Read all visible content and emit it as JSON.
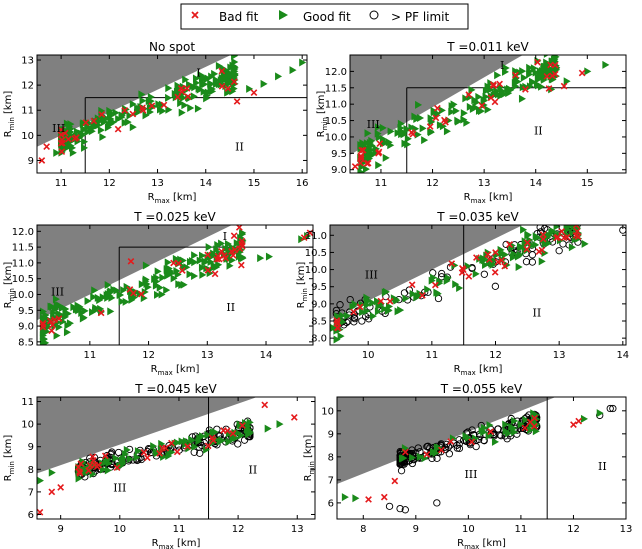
{
  "legend": {
    "entries": [
      {
        "label": "Bad fit",
        "marker": "x",
        "color": "#e41a1c"
      },
      {
        "label": "Good fit",
        "marker": "triangle-right",
        "color": "#1a8a1a"
      },
      {
        "label": "> PF limit",
        "marker": "circle-open",
        "color": "#000000"
      }
    ]
  },
  "colors": {
    "bad": "#e41a1c",
    "good": "#1a8a1a",
    "pf": "#000000",
    "excluded": "#808080"
  },
  "chart_data": [
    {
      "type": "scatter",
      "title": "No spot",
      "xlabel_main": "R",
      "xlabel_sub": "max",
      "xlabel_unit": " [km]",
      "ylabel_main": "R",
      "ylabel_sub": "min",
      "ylabel_unit": " [km]",
      "xlim": [
        10.5,
        16.1
      ],
      "ylim": [
        8.5,
        13.2
      ],
      "xticks": [
        11,
        12,
        13,
        14,
        15,
        16
      ],
      "xtick_labels": [
        "11",
        "12",
        "13",
        "14",
        "15",
        "16"
      ],
      "yticks": [
        9,
        10,
        11,
        12,
        13
      ],
      "ytick_labels": [
        "9",
        "10",
        "11",
        "12",
        "13"
      ],
      "vline": 11.5,
      "hline": 11.5,
      "region_labels": [
        {
          "text": "I",
          "x": 13.85,
          "y": 12.5
        },
        {
          "text": "III",
          "x": 10.95,
          "y": 10.3
        },
        {
          "text": "II",
          "x": 14.7,
          "y": 9.55
        }
      ],
      "trend": {
        "x0": 11.0,
        "x1": 14.6,
        "slope": 0.72,
        "intercept": 1.9,
        "spread": 0.5
      },
      "series": [
        {
          "name": "Good fit",
          "n": 230,
          "explicit": [
            [
              15.8,
              12.6
            ],
            [
              16.0,
              12.9
            ],
            [
              15.5,
              12.35
            ],
            [
              15.2,
              12.05
            ],
            [
              14.9,
              11.85
            ],
            [
              10.9,
              9.3
            ],
            [
              11.0,
              9.7
            ]
          ]
        },
        {
          "name": "Bad fit",
          "n": 28,
          "explicit": [
            [
              10.6,
              9.0
            ],
            [
              10.7,
              9.55
            ],
            [
              15.0,
              11.7
            ],
            [
              14.65,
              11.35
            ],
            [
              12.7,
              11.0
            ]
          ]
        }
      ]
    },
    {
      "type": "scatter",
      "title": "T =0.011 keV",
      "xlabel_main": "R",
      "xlabel_sub": "max",
      "xlabel_unit": " [km]",
      "ylabel_main": "R",
      "ylabel_sub": "min",
      "ylabel_unit": " [km]",
      "xlim": [
        10.4,
        15.75
      ],
      "ylim": [
        8.9,
        12.5
      ],
      "xticks": [
        11,
        12,
        13,
        14,
        15
      ],
      "xtick_labels": [
        "11",
        "12",
        "13",
        "14",
        "15"
      ],
      "yticks": [
        9.0,
        9.5,
        10.0,
        10.5,
        11.0,
        11.5,
        12.0
      ],
      "ytick_labels": [
        "9.0",
        "9.5",
        "10.0",
        "10.5",
        "11.0",
        "11.5",
        "12.0"
      ],
      "vline": 11.5,
      "hline": 11.5,
      "region_labels": [
        {
          "text": "I",
          "x": 13.35,
          "y": 12.2
        },
        {
          "text": "III",
          "x": 10.85,
          "y": 10.4
        },
        {
          "text": "II",
          "x": 14.05,
          "y": 10.2
        }
      ],
      "trend": {
        "x0": 10.6,
        "x1": 14.4,
        "slope": 0.72,
        "intercept": 1.85,
        "spread": 0.45
      },
      "series": [
        {
          "name": "Good fit",
          "n": 210,
          "explicit": [
            [
              15.35,
              12.2
            ],
            [
              15.0,
              12.0
            ],
            [
              14.6,
              11.7
            ],
            [
              14.3,
              11.45
            ]
          ]
        },
        {
          "name": "Bad fit",
          "n": 32,
          "explicit": [
            [
              14.9,
              11.95
            ],
            [
              14.55,
              11.55
            ],
            [
              10.6,
              9.2
            ],
            [
              10.5,
              9.1
            ],
            [
              13.8,
              11.45
            ]
          ]
        }
      ]
    },
    {
      "type": "scatter",
      "title": "T =0.025 keV",
      "xlabel_main": "R",
      "xlabel_sub": "max",
      "xlabel_unit": " [km]",
      "ylabel_main": "R",
      "ylabel_sub": "min",
      "ylabel_unit": " [km]",
      "xlim": [
        10.1,
        14.8
      ],
      "ylim": [
        8.4,
        12.2
      ],
      "xticks": [
        11,
        12,
        13,
        14
      ],
      "xtick_labels": [
        "11",
        "12",
        "13",
        "14"
      ],
      "yticks": [
        8.5,
        9.0,
        9.5,
        10.0,
        10.5,
        11.0,
        11.5,
        12.0
      ],
      "ytick_labels": [
        "8.5",
        "9.0",
        "9.5",
        "10.0",
        "10.5",
        "11.0",
        "11.5",
        "12.0"
      ],
      "vline": 11.5,
      "hline": 11.5,
      "region_labels": [
        {
          "text": "I",
          "x": 13.3,
          "y": 11.85
        },
        {
          "text": "III",
          "x": 10.45,
          "y": 10.1
        },
        {
          "text": "II",
          "x": 13.4,
          "y": 9.6
        }
      ],
      "trend": {
        "x0": 10.2,
        "x1": 13.6,
        "slope": 0.72,
        "intercept": 1.7,
        "spread": 0.45
      },
      "series": [
        {
          "name": "Good fit",
          "n": 210,
          "explicit": [
            [
              14.6,
              11.75
            ],
            [
              14.7,
              11.85
            ],
            [
              14.05,
              11.2
            ],
            [
              13.9,
              11.15
            ],
            [
              10.2,
              8.7
            ]
          ]
        },
        {
          "name": "Bad fit",
          "n": 32,
          "explicit": [
            [
              14.65,
              11.8
            ],
            [
              14.75,
              11.95
            ],
            [
              10.2,
              9.05
            ],
            [
              10.35,
              8.85
            ],
            [
              11.7,
              11.05
            ]
          ]
        }
      ]
    },
    {
      "type": "scatter",
      "title": "T =0.035 keV",
      "xlabel_main": "R",
      "xlabel_sub": "max",
      "xlabel_unit": " [km]",
      "ylabel_main": "R",
      "ylabel_sub": "min",
      "ylabel_unit": " [km]",
      "xlim": [
        9.4,
        14.05
      ],
      "ylim": [
        7.8,
        11.3
      ],
      "xticks": [
        10,
        11,
        12,
        13,
        14
      ],
      "xtick_labels": [
        "10",
        "11",
        "12",
        "13",
        "14"
      ],
      "yticks": [
        8.0,
        8.5,
        9.0,
        9.5,
        10.0,
        10.5,
        11.0
      ],
      "ytick_labels": [
        "8.0",
        "8.5",
        "9.0",
        "9.5",
        "10.0",
        "10.5",
        "11.0"
      ],
      "vline": 11.5,
      "hline": null,
      "region_labels": [
        {
          "text": "III",
          "x": 10.05,
          "y": 9.85
        },
        {
          "text": "II",
          "x": 12.65,
          "y": 8.75
        }
      ],
      "trend": {
        "x0": 9.5,
        "x1": 13.3,
        "slope": 0.73,
        "intercept": 1.55,
        "spread": 0.4
      },
      "series": [
        {
          "name": "Good fit",
          "n": 130,
          "explicit": [
            [
              9.45,
              8.3
            ],
            [
              9.55,
              8.25
            ],
            [
              13.4,
              10.75
            ],
            [
              13.2,
              10.65
            ]
          ]
        },
        {
          "name": "Bad fit",
          "n": 40,
          "explicit": [
            [
              12.0,
              10.5
            ],
            [
              11.7,
              10.35
            ]
          ]
        },
        {
          "name": "> PF limit",
          "n": 110,
          "explicit": [
            [
              14.0,
              11.15
            ],
            [
              13.0,
              10.55
            ],
            [
              9.9,
              8.5
            ]
          ]
        }
      ]
    },
    {
      "type": "scatter",
      "title": "T =0.045 keV",
      "xlabel_main": "R",
      "xlabel_sub": "max",
      "xlabel_unit": " [km]",
      "ylabel_main": "R",
      "ylabel_sub": "min",
      "ylabel_unit": " [km]",
      "xlim": [
        8.6,
        13.3
      ],
      "ylim": [
        5.8,
        11.2
      ],
      "xticks": [
        9,
        10,
        11,
        12,
        13
      ],
      "xtick_labels": [
        "9",
        "10",
        "11",
        "12",
        "13"
      ],
      "yticks": [
        6,
        7,
        8,
        9,
        10,
        11
      ],
      "ytick_labels": [
        "6",
        "7",
        "8",
        "9",
        "10",
        "11"
      ],
      "vline": 11.5,
      "hline": null,
      "region_labels": [
        {
          "text": "III",
          "x": 10.0,
          "y": 7.2
        },
        {
          "text": "II",
          "x": 12.25,
          "y": 8.0
        }
      ],
      "trend": {
        "x0": 9.3,
        "x1": 12.2,
        "slope": 0.6,
        "intercept": 2.4,
        "spread": 0.35
      },
      "series": [
        {
          "name": "Good fit",
          "n": 90,
          "explicit": [
            [
              8.65,
              7.5
            ],
            [
              8.85,
              7.85
            ],
            [
              12.7,
              10.0
            ],
            [
              12.5,
              9.8
            ]
          ]
        },
        {
          "name": "Bad fit",
          "n": 28,
          "explicit": [
            [
              8.65,
              6.1
            ],
            [
              8.85,
              7.0
            ],
            [
              9.0,
              7.2
            ],
            [
              12.45,
              10.85
            ],
            [
              12.95,
              10.3
            ]
          ]
        },
        {
          "name": "> PF limit",
          "n": 180,
          "explicit": []
        }
      ]
    },
    {
      "type": "scatter",
      "title": "T =0.055 keV",
      "xlabel_main": "R",
      "xlabel_sub": "max",
      "xlabel_unit": " [km]",
      "ylabel_main": "R",
      "ylabel_sub": "min",
      "ylabel_unit": " [km]",
      "xlim": [
        7.5,
        13.0
      ],
      "ylim": [
        5.3,
        10.6
      ],
      "xticks": [
        8,
        9,
        10,
        11,
        12,
        13
      ],
      "xtick_labels": [
        "8",
        "9",
        "10",
        "11",
        "12",
        "13"
      ],
      "yticks": [
        6,
        7,
        8,
        9,
        10
      ],
      "ytick_labels": [
        "6",
        "7",
        "8",
        "9",
        "10"
      ],
      "vline": 11.5,
      "hline": null,
      "region_labels": [
        {
          "text": "III",
          "x": 10.05,
          "y": 7.25
        },
        {
          "text": "II",
          "x": 12.55,
          "y": 7.6
        }
      ],
      "trend": {
        "x0": 8.7,
        "x1": 11.3,
        "slope": 0.65,
        "intercept": 2.2,
        "spread": 0.35
      },
      "series": [
        {
          "name": "Good fit",
          "n": 40,
          "explicit": [
            [
              7.65,
              6.25
            ],
            [
              7.85,
              6.2
            ],
            [
              12.2,
              9.65
            ],
            [
              12.5,
              9.9
            ]
          ]
        },
        {
          "name": "Bad fit",
          "n": 10,
          "explicit": [
            [
              8.1,
              6.15
            ],
            [
              8.4,
              6.25
            ],
            [
              8.6,
              6.95
            ],
            [
              12.0,
              9.4
            ],
            [
              12.1,
              9.55
            ]
          ]
        },
        {
          "name": "> PF limit",
          "n": 200,
          "explicit": [
            [
              12.7,
              10.1
            ],
            [
              12.75,
              10.1
            ],
            [
              12.5,
              9.8
            ],
            [
              9.4,
              6.0
            ],
            [
              8.5,
              5.85
            ],
            [
              8.7,
              5.75
            ],
            [
              8.8,
              5.7
            ]
          ]
        }
      ]
    }
  ]
}
